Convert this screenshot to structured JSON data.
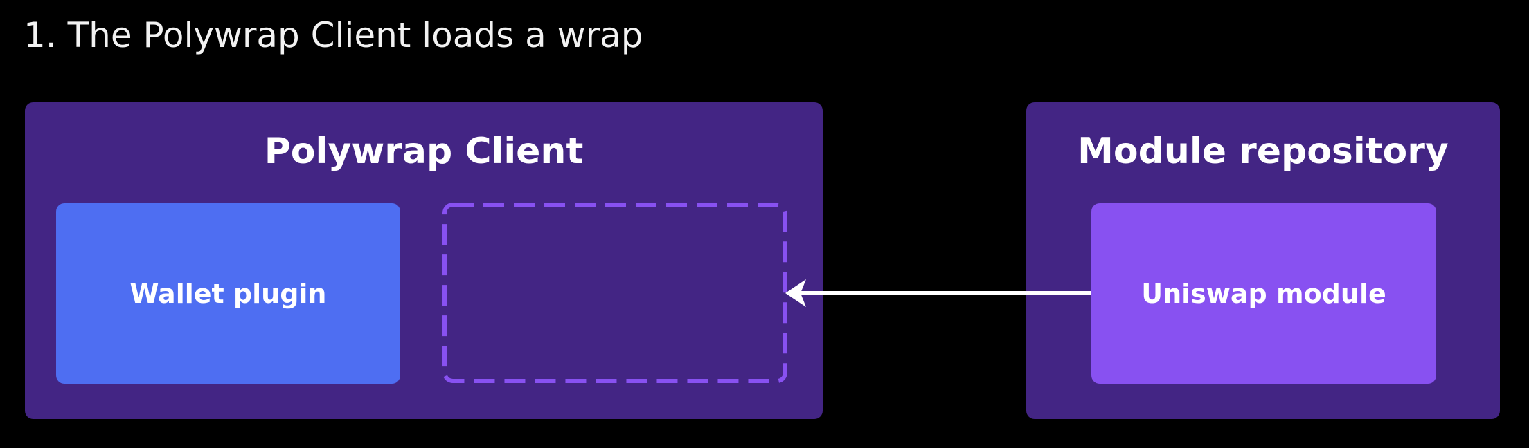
{
  "title": "1. The Polywrap Client loads a wrap",
  "client_panel": {
    "title": "Polywrap Client",
    "wallet_plugin_label": "Wallet plugin",
    "empty_slot_label": ""
  },
  "repository_panel": {
    "title": "Module repository",
    "uniswap_module_label": "Uniswap module"
  },
  "colors": {
    "background": "#000000",
    "panel": "#432584",
    "wallet_plugin": "#4e6ef2",
    "uniswap_module": "#8851f1",
    "slot_dashed_border": "#8851f1",
    "arrow": "#ffffff",
    "text": "#ffffff"
  },
  "connections": [
    {
      "from": "uniswap-module",
      "to": "empty-wrap-slot",
      "style": "arrow"
    }
  ]
}
